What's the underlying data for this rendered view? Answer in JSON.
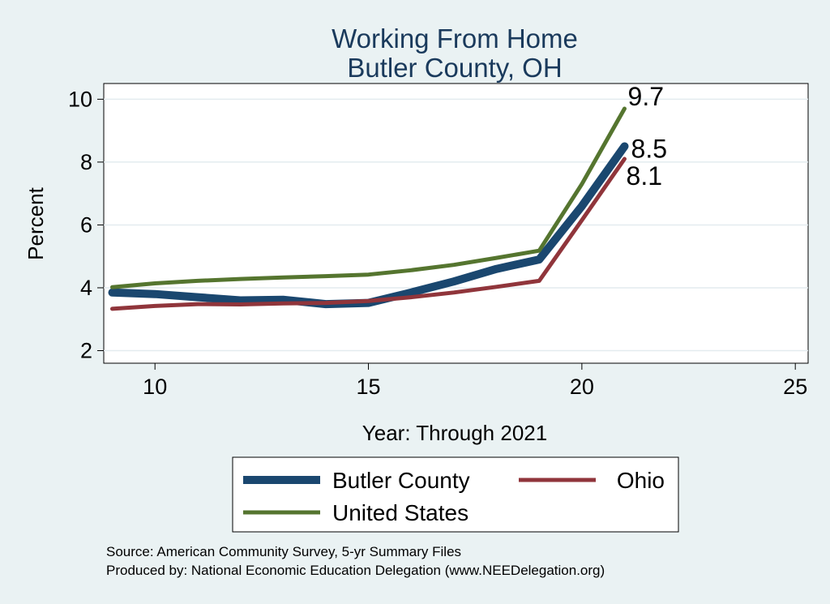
{
  "chart_data": {
    "type": "line",
    "title": "Working From Home",
    "subtitle": "Butler County, OH",
    "xlabel": "Year: Through 2021",
    "ylabel": "Percent",
    "xlim": [
      8.8,
      25.3
    ],
    "ylim": [
      1.6,
      10.5
    ],
    "xticks": [
      10,
      15,
      20,
      25
    ],
    "yticks": [
      2,
      4,
      6,
      8,
      10
    ],
    "grid": true,
    "legend_position": "bottom",
    "series": [
      {
        "name": "Butler County",
        "color": "#1a476f",
        "x": [
          9,
          10,
          11,
          12,
          13,
          14,
          15,
          16,
          17,
          18,
          19,
          20,
          21
        ],
        "y": [
          3.85,
          3.8,
          3.7,
          3.6,
          3.62,
          3.48,
          3.52,
          3.85,
          4.2,
          4.6,
          4.9,
          6.6,
          8.5
        ],
        "end_label": "8.5"
      },
      {
        "name": "Ohio",
        "color": "#90353b",
        "x": [
          9,
          10,
          11,
          12,
          13,
          14,
          15,
          16,
          17,
          18,
          19,
          20,
          21
        ],
        "y": [
          3.33,
          3.42,
          3.48,
          3.47,
          3.5,
          3.52,
          3.58,
          3.7,
          3.85,
          4.03,
          4.22,
          6.15,
          8.1
        ],
        "end_label": "8.1"
      },
      {
        "name": "United States",
        "color": "#55752f",
        "x": [
          9,
          10,
          11,
          12,
          13,
          14,
          15,
          16,
          17,
          18,
          19,
          20,
          21
        ],
        "y": [
          4.02,
          4.14,
          4.22,
          4.28,
          4.33,
          4.37,
          4.42,
          4.56,
          4.73,
          4.95,
          5.18,
          7.3,
          9.7
        ],
        "end_label": "9.7"
      }
    ],
    "notes": [
      "Source: American Community Survey, 5-yr Summary Files",
      "Produced by: National Economic Education Delegation (www.NEEDelegation.org)"
    ]
  }
}
